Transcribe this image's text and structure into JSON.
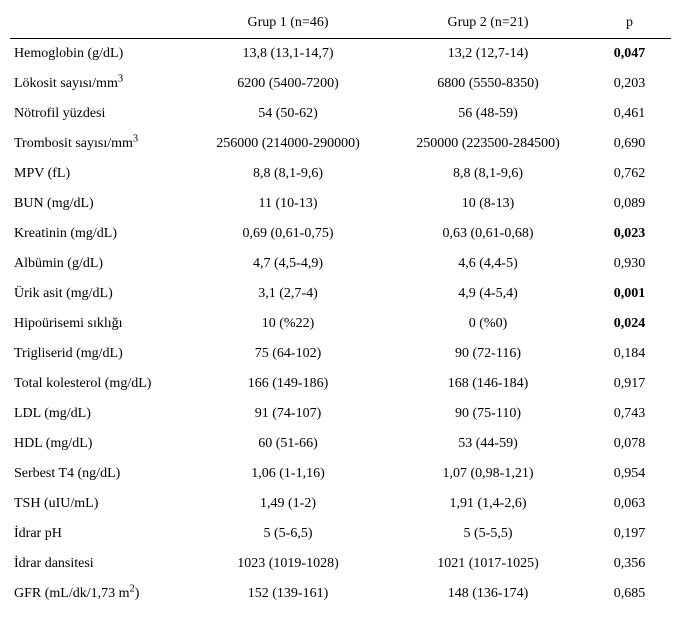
{
  "table": {
    "headers": {
      "blank": "",
      "g1": "Grup 1 (n=46)",
      "g2": "Grup 2 (n=21)",
      "p": "p"
    },
    "rows": [
      {
        "label_html": "Hemoglobin (g/dL)",
        "g1": "13,8 (13,1-14,7)",
        "g2": "13,2 (12,7-14)",
        "p": "0,047",
        "p_bold": true
      },
      {
        "label_html": "Lökosit sayısı/mm<sup>3</sup>",
        "g1": "6200 (5400-7200)",
        "g2": "6800 (5550-8350)",
        "p": "0,203",
        "p_bold": false
      },
      {
        "label_html": "Nötrofil yüzdesi",
        "g1": "54 (50-62)",
        "g2": "56 (48-59)",
        "p": "0,461",
        "p_bold": false
      },
      {
        "label_html": "Trombosit sayısı/mm<sup>3</sup>",
        "g1": "256000 (214000-290000)",
        "g2": "250000 (223500-284500)",
        "p": "0,690",
        "p_bold": false
      },
      {
        "label_html": "MPV (fL)",
        "g1": "8,8 (8,1-9,6)",
        "g2": "8,8 (8,1-9,6)",
        "p": "0,762",
        "p_bold": false
      },
      {
        "label_html": "BUN (mg/dL)",
        "g1": "11 (10-13)",
        "g2": "10 (8-13)",
        "p": "0,089",
        "p_bold": false
      },
      {
        "label_html": "Kreatinin (mg/dL)",
        "g1": "0,69 (0,61-0,75)",
        "g2": "0,63 (0,61-0,68)",
        "p": "0,023",
        "p_bold": true
      },
      {
        "label_html": "Albümin (g/dL)",
        "g1": "4,7 (4,5-4,9)",
        "g2": "4,6 (4,4-5)",
        "p": "0,930",
        "p_bold": false
      },
      {
        "label_html": "Ürik asit (mg/dL)",
        "g1": "3,1 (2,7-4)",
        "g2": "4,9 (4-5,4)",
        "p": "0,001",
        "p_bold": true
      },
      {
        "label_html": "Hipoürisemi sıklığı",
        "g1": "10 (%22)",
        "g2": "0 (%0)",
        "p": "0,024",
        "p_bold": true
      },
      {
        "label_html": "Trigliserid (mg/dL)",
        "g1": "75 (64-102)",
        "g2": "90 (72-116)",
        "p": "0,184",
        "p_bold": false
      },
      {
        "label_html": "Total kolesterol (mg/dL)",
        "g1": "166 (149-186)",
        "g2": "168 (146-184)",
        "p": "0,917",
        "p_bold": false
      },
      {
        "label_html": "LDL (mg/dL)",
        "g1": "91 (74-107)",
        "g2": "90 (75-110)",
        "p": "0,743",
        "p_bold": false
      },
      {
        "label_html": "HDL (mg/dL)",
        "g1": "60 (51-66)",
        "g2": "53 (44-59)",
        "p": "0,078",
        "p_bold": false
      },
      {
        "label_html": "Serbest T4 (ng/dL)",
        "g1": "1,06 (1-1,16)",
        "g2": "1,07 (0,98-1,21)",
        "p": "0,954",
        "p_bold": false
      },
      {
        "label_html": "TSH (uIU/mL)",
        "g1": "1,49 (1-2)",
        "g2": "1,91 (1,4-2,6)",
        "p": "0,063",
        "p_bold": false
      },
      {
        "label_html": "İdrar pH",
        "g1": "5 (5-6,5)",
        "g2": "5 (5-5,5)",
        "p": "0,197",
        "p_bold": false
      },
      {
        "label_html": "İdrar dansitesi",
        "g1": "1023 (1019-1028)",
        "g2": "1021 (1017-1025)",
        "p": "0,356",
        "p_bold": false
      },
      {
        "label_html": "GFR (mL/dk/1,73 m<sup>2</sup>)",
        "g1": "152 (139-161)",
        "g2": "148 (136-174)",
        "p": "0,685",
        "p_bold": false
      }
    ]
  }
}
